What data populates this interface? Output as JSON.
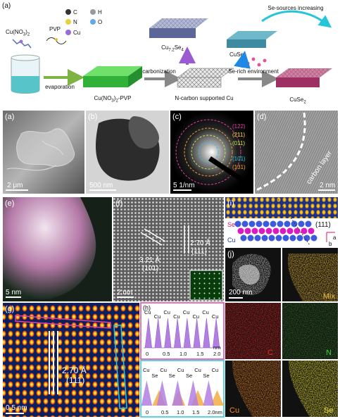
{
  "panel_a": {
    "label": "(a)",
    "precursor": [
      "Cu(NO",
      "3",
      ")",
      "2"
    ],
    "pvp": "PVP",
    "legend": [
      "C",
      "H",
      "N",
      "O",
      "Cu"
    ],
    "step1": "evaporation",
    "product1": [
      "Cu(NO",
      "3",
      ")",
      "2",
      "-PVP"
    ],
    "step2": "carbonization",
    "product2": "N-carbon supported Cu",
    "step3": "Se-rich environment",
    "product3": [
      "CuSe",
      "2"
    ],
    "cuse": "CuSe",
    "cu7se4": [
      "Cu",
      "7.2",
      "Se",
      "4"
    ],
    "increasing": "Se-sources increasing"
  },
  "sem": {
    "label": "(a)",
    "scale": "2 μm"
  },
  "tem": {
    "label": "(b)",
    "scale": "500 nm"
  },
  "saed": {
    "label": "(c)",
    "scale": "5 1/nm",
    "rings": [
      "(122)",
      "(211)",
      "(011)",
      "(101)",
      "(131)"
    ]
  },
  "hrtem_d": {
    "label": "(d)",
    "scale": "2 nm",
    "note": "carbon layer"
  },
  "haadf_e": {
    "label": "(e)",
    "scale": "5 nm"
  },
  "hrtem_f": {
    "label": "(f)",
    "scale": "2 nm",
    "d1": "3.21 Å",
    "plane1": "(101)",
    "d2": "2.70 Å",
    "plane2": "(111)"
  },
  "model_i": {
    "label": "(i)",
    "se": "Se",
    "cu": "Cu",
    "plane": "(111)",
    "axis_a": "a",
    "axis_b": "b"
  },
  "mapping_j": {
    "label": "(j)",
    "scale": "200 nm",
    "mix": "Mix",
    "c": "C",
    "n": "N",
    "cu": "Cu",
    "se": "Se"
  },
  "haadf_g": {
    "label": "(g)",
    "scale": "0.5 nm",
    "d": "2.70 Å",
    "plane": "(111)"
  },
  "profile_h": {
    "label": "(h)",
    "top_atoms": [
      "Cu",
      "Cu",
      "Cu",
      "Cu",
      "Cu",
      "Cu",
      "Cu",
      "Cu"
    ],
    "top_ticks": [
      "0",
      "0.5",
      "1.0",
      "1.5",
      "2.0"
    ],
    "top_unit": "nm",
    "bottom_atoms": [
      "Cu",
      "Se",
      "Cu",
      "Se",
      "Cu",
      "Se",
      "Cu",
      "Se",
      "Cu"
    ],
    "bottom_ticks": [
      "0",
      "0.5",
      "1.0",
      "1.5",
      "2.0nm"
    ]
  }
}
